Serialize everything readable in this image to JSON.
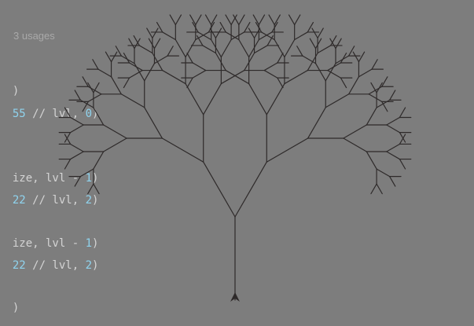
{
  "editor": {
    "usages_hint": "3 usages",
    "lines": [
      {
        "parts": [
          {
            "text": ")",
            "kind": "plain"
          }
        ]
      },
      {
        "parts": [
          {
            "text": "55",
            "kind": "num"
          },
          {
            "text": " // lvl, ",
            "kind": "plain"
          },
          {
            "text": "0",
            "kind": "num"
          },
          {
            "text": ")",
            "kind": "plain"
          }
        ]
      },
      {
        "parts": [
          {
            "text": "ize, lvl - ",
            "kind": "plain"
          },
          {
            "text": "1",
            "kind": "num"
          },
          {
            "text": ")",
            "kind": "plain"
          }
        ]
      },
      {
        "parts": [
          {
            "text": "22",
            "kind": "num"
          },
          {
            "text": " // lvl, ",
            "kind": "plain"
          },
          {
            "text": "2",
            "kind": "num"
          },
          {
            "text": ")",
            "kind": "plain"
          }
        ]
      },
      {
        "parts": [
          {
            "text": "ize, lvl - ",
            "kind": "plain"
          },
          {
            "text": "1",
            "kind": "num"
          },
          {
            "text": ")",
            "kind": "plain"
          }
        ]
      },
      {
        "parts": [
          {
            "text": "22",
            "kind": "num"
          },
          {
            "text": " // lvl, ",
            "kind": "plain"
          },
          {
            "text": "2",
            "kind": "num"
          },
          {
            "text": ")",
            "kind": "plain"
          }
        ]
      },
      {
        "parts": [
          {
            "text": ")",
            "kind": "plain"
          }
        ]
      }
    ]
  },
  "canvas": {
    "background_color": "#7d7d7d",
    "stroke_color": "#2e2a2a",
    "cursor_icon": "turtle-arrow-icon",
    "tree": {
      "recursion_depth": 6,
      "branch_angle_deg": 30,
      "length_ratio": 0.75
    }
  }
}
